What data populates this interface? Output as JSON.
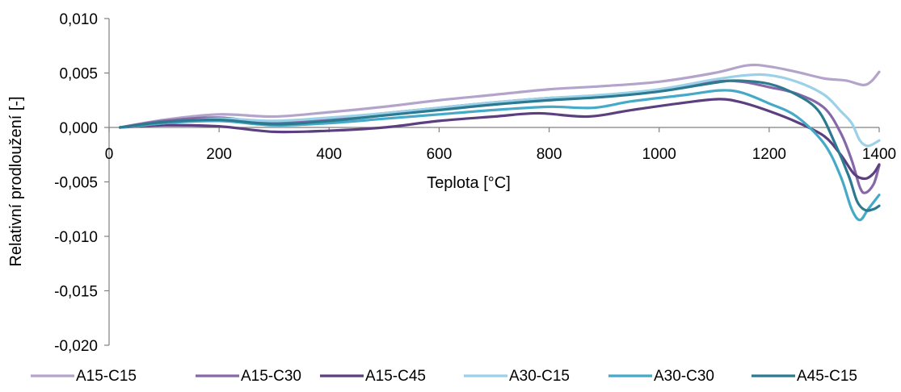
{
  "chart_data": {
    "type": "line",
    "xlabel": "Teplota [°C]",
    "ylabel": "Relativní prodloužení [-]",
    "xlim": [
      0,
      1400
    ],
    "ylim": [
      -0.02,
      0.01
    ],
    "x_ticks": [
      0,
      200,
      400,
      600,
      800,
      1000,
      1200,
      1400
    ],
    "x_tick_labels": [
      "0",
      "200",
      "400",
      "600",
      "800",
      "1000",
      "1200",
      "1400"
    ],
    "y_ticks": [
      0.01,
      0.005,
      0.0,
      -0.005,
      -0.01,
      -0.015,
      -0.02
    ],
    "y_tick_labels": [
      "0,010",
      "0,005",
      "0,000",
      "-0,005",
      "-0,010",
      "-0,015",
      "-0,020"
    ],
    "grid": false,
    "legend_position": "bottom",
    "series": [
      {
        "name": "A15-C15",
        "color": "#b4a3cb",
        "x": [
          20,
          100,
          200,
          300,
          400,
          500,
          600,
          700,
          800,
          900,
          1000,
          1100,
          1160,
          1200,
          1250,
          1300,
          1340,
          1370,
          1385,
          1400
        ],
        "y": [
          0.0,
          0.0007,
          0.0012,
          0.001,
          0.0014,
          0.0019,
          0.0025,
          0.003,
          0.0035,
          0.0038,
          0.0042,
          0.005,
          0.0057,
          0.0056,
          0.0051,
          0.0045,
          0.0043,
          0.0039,
          0.0042,
          0.0051
        ]
      },
      {
        "name": "A15-C30",
        "color": "#8667a8",
        "x": [
          20,
          100,
          200,
          300,
          400,
          500,
          600,
          700,
          800,
          900,
          1000,
          1100,
          1150,
          1200,
          1250,
          1300,
          1330,
          1350,
          1365,
          1375,
          1390,
          1400
        ],
        "y": [
          0.0,
          0.0006,
          0.0009,
          0.0004,
          0.0008,
          0.0013,
          0.0018,
          0.0023,
          0.0027,
          0.0029,
          0.0034,
          0.0042,
          0.0042,
          0.0037,
          0.0031,
          0.0018,
          -0.0005,
          -0.003,
          -0.0055,
          -0.006,
          -0.0052,
          -0.0035
        ]
      },
      {
        "name": "A15-C45",
        "color": "#5c3f7e",
        "x": [
          20,
          100,
          200,
          300,
          400,
          500,
          600,
          700,
          780,
          870,
          950,
          1050,
          1110,
          1150,
          1200,
          1250,
          1300,
          1330,
          1355,
          1375,
          1390,
          1400
        ],
        "y": [
          0.0,
          0.0002,
          0.0001,
          -0.0004,
          -0.0003,
          0.0,
          0.0006,
          0.001,
          0.0013,
          0.001,
          0.0016,
          0.0023,
          0.0026,
          0.0023,
          0.0015,
          0.0005,
          -0.0008,
          -0.0025,
          -0.0043,
          -0.0047,
          -0.0042,
          -0.0034
        ]
      },
      {
        "name": "A30-C15",
        "color": "#9bd1e8",
        "x": [
          20,
          100,
          200,
          300,
          400,
          500,
          600,
          700,
          800,
          900,
          1000,
          1100,
          1160,
          1200,
          1250,
          1300,
          1330,
          1350,
          1365,
          1380,
          1400
        ],
        "y": [
          0.0,
          0.0004,
          0.0008,
          0.0006,
          0.0009,
          0.0013,
          0.0018,
          0.0023,
          0.0027,
          0.003,
          0.0035,
          0.0044,
          0.0048,
          0.0048,
          0.0042,
          0.003,
          0.0015,
          0.0004,
          -0.0012,
          -0.0017,
          -0.0012
        ]
      },
      {
        "name": "A30-C30",
        "color": "#45a9c8",
        "x": [
          20,
          100,
          200,
          300,
          400,
          500,
          600,
          700,
          800,
          880,
          950,
          1050,
          1110,
          1150,
          1200,
          1250,
          1300,
          1330,
          1350,
          1365,
          1380,
          1400
        ],
        "y": [
          0.0,
          0.0004,
          0.0006,
          0.0002,
          0.0004,
          0.0008,
          0.0012,
          0.0016,
          0.0019,
          0.0018,
          0.0024,
          0.003,
          0.0034,
          0.0032,
          0.0022,
          0.001,
          -0.0015,
          -0.0045,
          -0.0075,
          -0.0085,
          -0.0075,
          -0.0062
        ]
      },
      {
        "name": "A45-C15",
        "color": "#2b7a8f",
        "x": [
          20,
          100,
          200,
          300,
          400,
          500,
          600,
          700,
          800,
          900,
          1000,
          1100,
          1140,
          1200,
          1250,
          1290,
          1320,
          1345,
          1360,
          1375,
          1390,
          1400
        ],
        "y": [
          0.0,
          0.0005,
          0.0007,
          0.0003,
          0.0006,
          0.0011,
          0.0016,
          0.0021,
          0.0025,
          0.0028,
          0.0033,
          0.0041,
          0.0043,
          0.004,
          0.003,
          0.0015,
          -0.0015,
          -0.0045,
          -0.0068,
          -0.0076,
          -0.0075,
          -0.0072
        ]
      }
    ]
  }
}
